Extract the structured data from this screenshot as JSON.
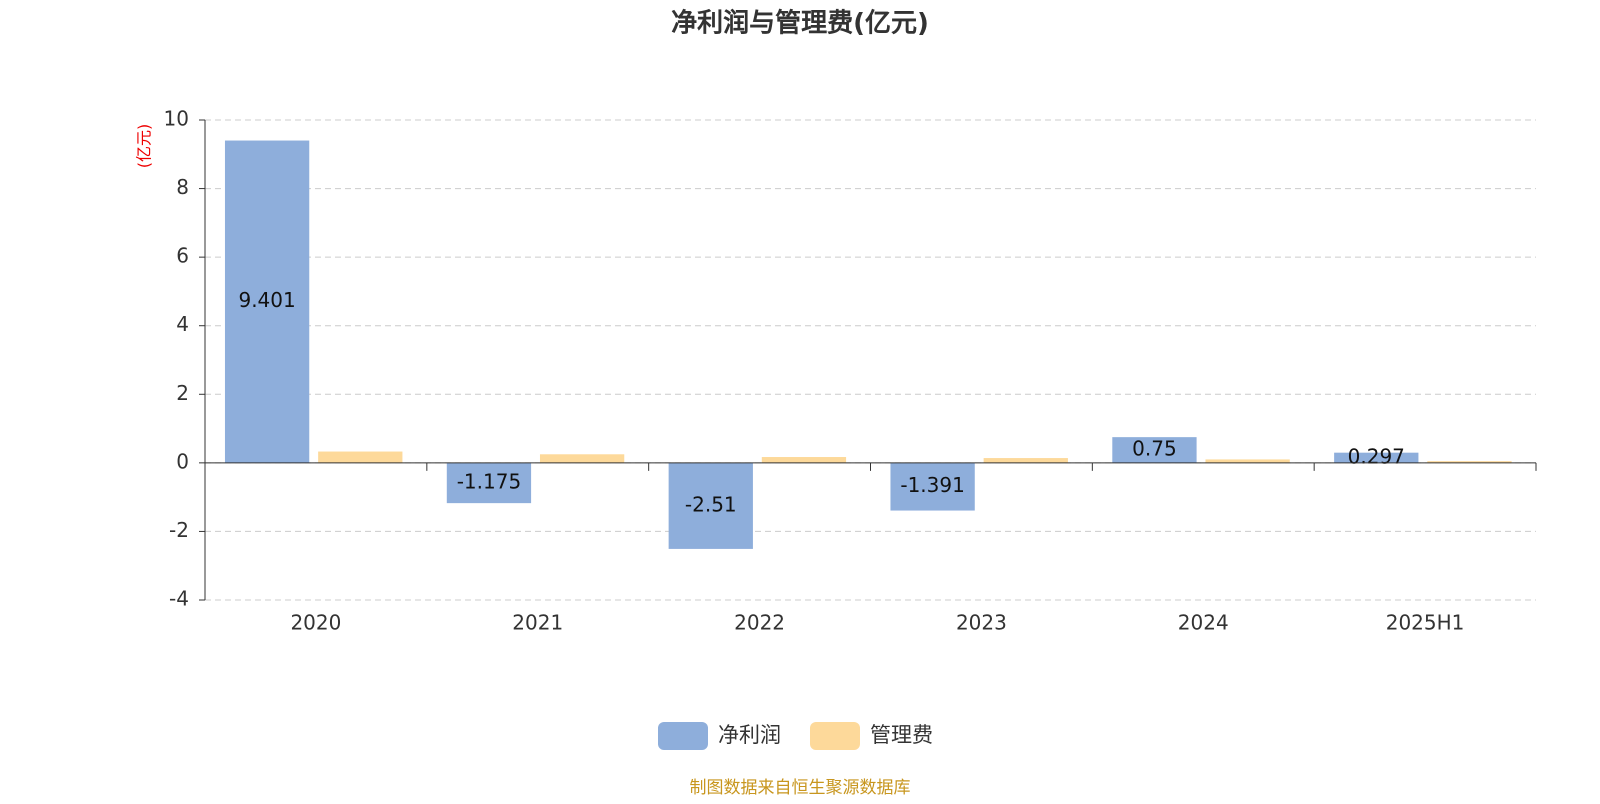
{
  "chart_data": {
    "type": "bar",
    "title": "净利润与管理费(亿元)",
    "y_label": "(亿元)",
    "categories": [
      "2020",
      "2021",
      "2022",
      "2023",
      "2024",
      "2025H1"
    ],
    "series": [
      {
        "name": "净利润",
        "color": "#8eaedb",
        "values": [
          9.401,
          -1.175,
          -2.51,
          -1.391,
          0.75,
          0.297
        ]
      },
      {
        "name": "管理费",
        "color": "#fdd99a",
        "values": [
          0.33,
          0.25,
          0.17,
          0.14,
          0.1,
          0.05
        ]
      }
    ],
    "ylim": [
      -4,
      10
    ],
    "yticks": [
      -4,
      -2,
      0,
      2,
      4,
      6,
      8,
      10
    ],
    "grid": true,
    "source": "制图数据来自恒生聚源数据库"
  }
}
